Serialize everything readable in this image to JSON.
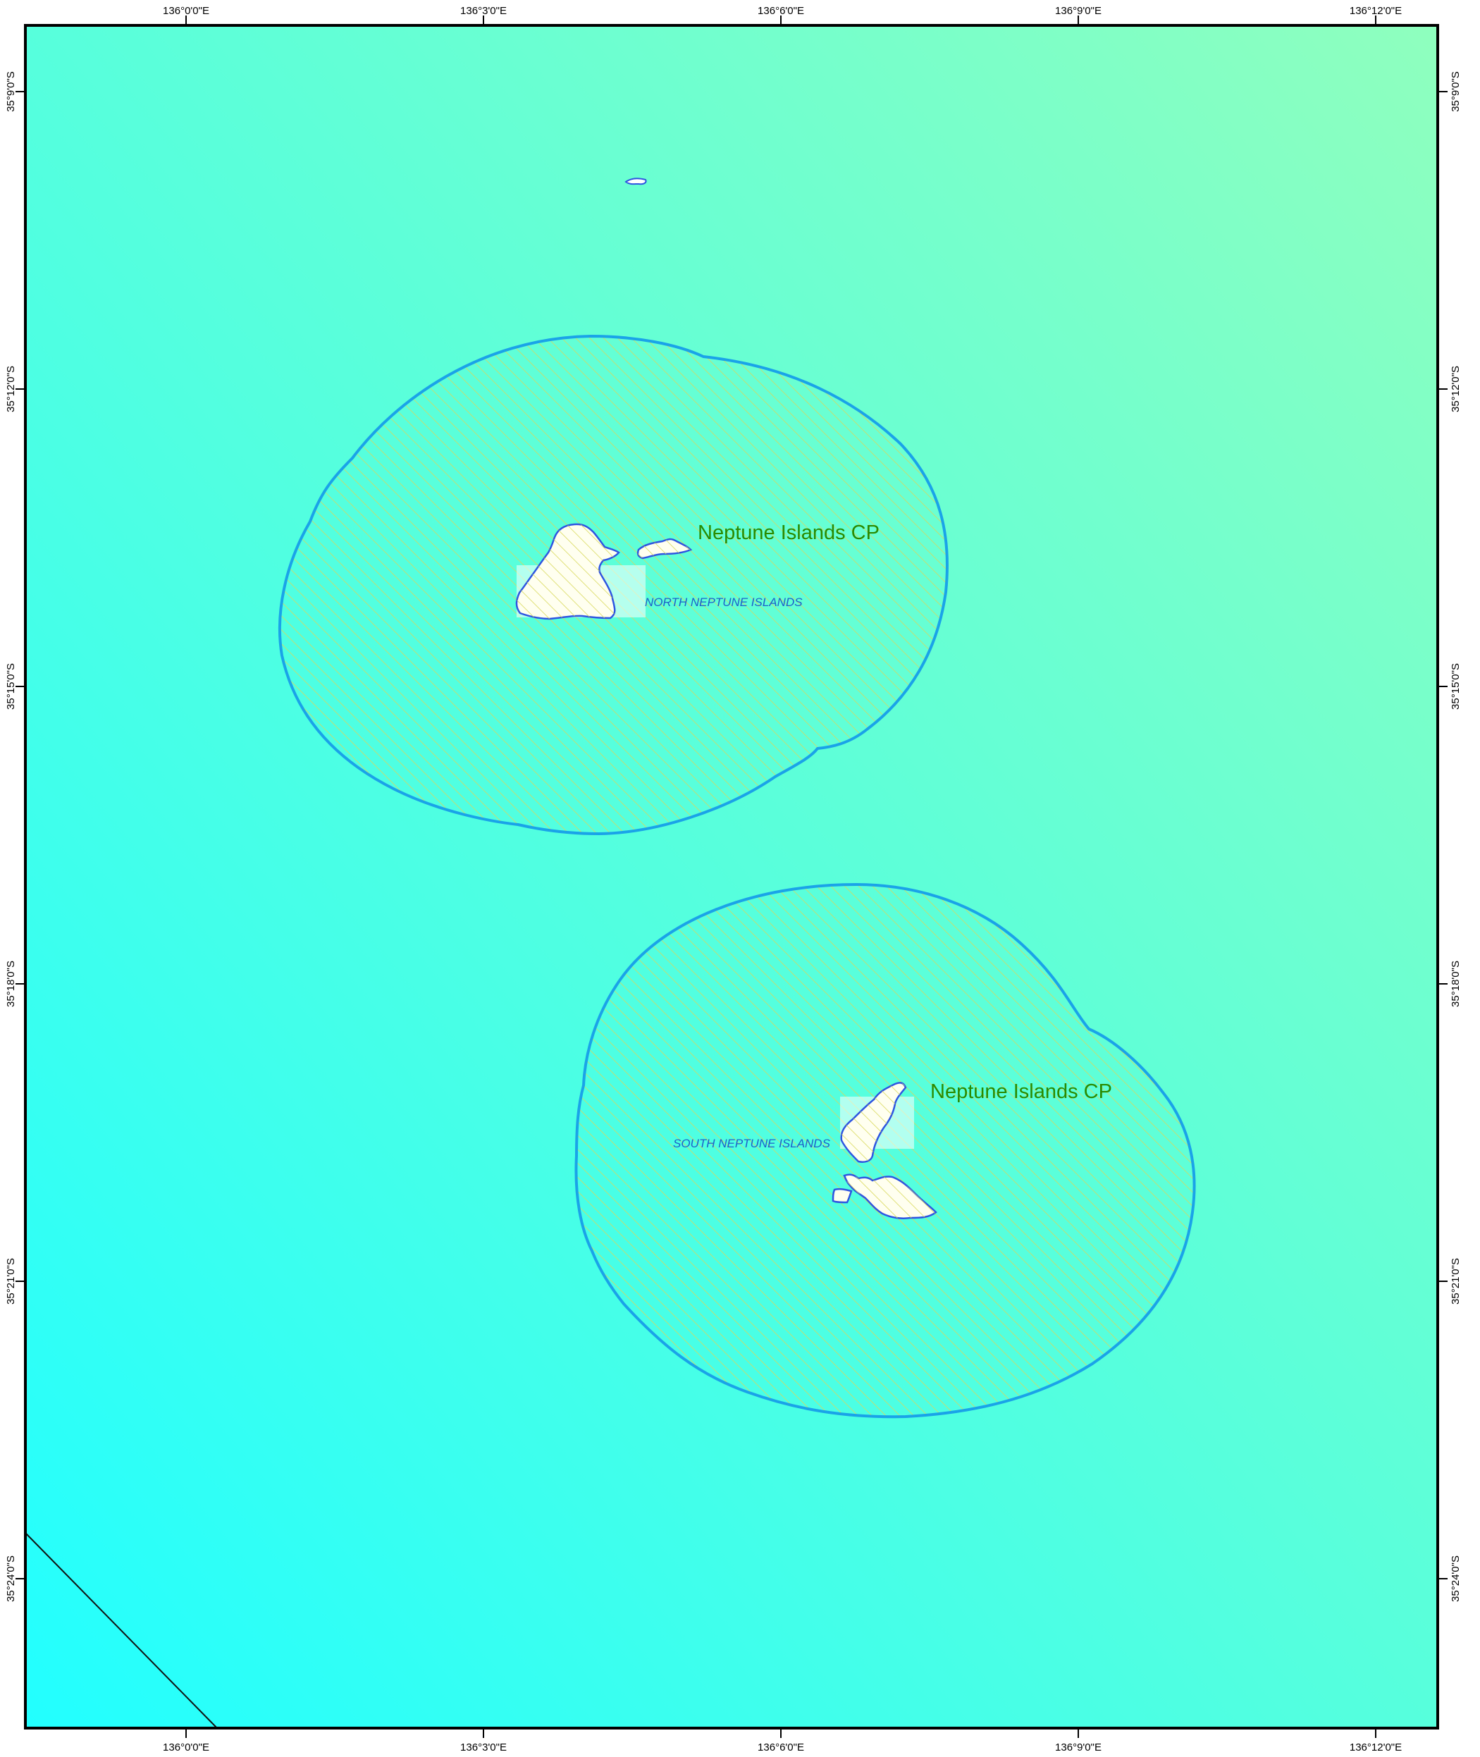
{
  "map": {
    "top_axis_labels": [
      "136°0'0\"E",
      "136°3'0\"E",
      "136°6'0\"E",
      "136°9'0\"E",
      "136°12'0\"E"
    ],
    "bottom_axis_labels": [
      "136°0'0\"E",
      "136°3'0\"E",
      "136°6'0\"E",
      "136°9'0\"E",
      "136°12'0\"E"
    ],
    "left_axis_labels": [
      "35°9'0\"S",
      "35°12'0\"S",
      "35°15'0\"S",
      "35°18'0\"S",
      "35°21'0\"S",
      "35°24'0\"S"
    ],
    "right_axis_labels": [
      "35°9'0\"S",
      "35°12'0\"S",
      "35°15'0\"S",
      "35°18'0\"S",
      "35°21'0\"S",
      "35°24'0\"S"
    ],
    "zones": [
      {
        "label": "Neptune Islands CP",
        "island_label": "NORTH NEPTUNE ISLANDS"
      },
      {
        "label": "Neptune Islands CP",
        "island_label": "SOUTH NEPTUNE ISLANDS"
      }
    ],
    "colors": {
      "sea_top_right": "#8fffbe",
      "sea_bottom_left": "#22ffff",
      "zone_outline": "#1aa3e8",
      "hatch": "#d8d85a",
      "island_outline": "#2f55e0",
      "label_green": "#2b8a00",
      "label_blue": "#1f5fc8",
      "frame": "#000000"
    }
  }
}
